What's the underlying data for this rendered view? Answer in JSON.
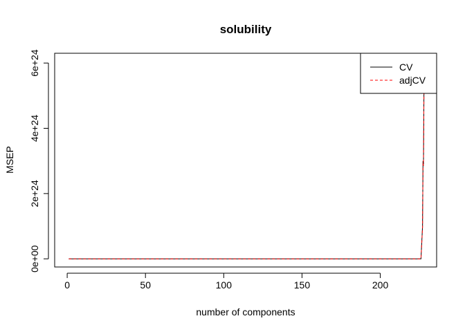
{
  "chart_data": {
    "type": "line",
    "title": "solubility",
    "xlabel": "number of components",
    "ylabel": "MSEP",
    "xlim": [
      -8,
      236
    ],
    "ylim": [
      -2.5e+23,
      6.3e+24
    ],
    "x_ticks": [
      0,
      50,
      100,
      150,
      200
    ],
    "y_ticks": [
      {
        "value": 0,
        "label": "0e+00"
      },
      {
        "value": 2e+24,
        "label": "2e+24"
      },
      {
        "value": 4e+24,
        "label": "4e+24"
      },
      {
        "value": 6e+24,
        "label": "6e+24"
      }
    ],
    "legend_position": "top-right",
    "series": [
      {
        "name": "CV",
        "color": "#000000",
        "linestyle": "solid",
        "x": [
          1,
          50,
          100,
          150,
          200,
          226,
          227,
          227.3,
          227.6,
          228
        ],
        "y": [
          0,
          0,
          0,
          0,
          0,
          0,
          1e+24,
          3e+24,
          2.9e+24,
          5.9e+24
        ]
      },
      {
        "name": "adjCV",
        "color": "#ff0000",
        "linestyle": "dashed",
        "x": [
          1,
          50,
          100,
          150,
          200,
          226,
          227,
          227.3,
          227.6,
          228
        ],
        "y": [
          0,
          0,
          0,
          0,
          0,
          0,
          9.5e+23,
          2.95e+24,
          2.85e+24,
          5.8e+24
        ]
      }
    ]
  }
}
